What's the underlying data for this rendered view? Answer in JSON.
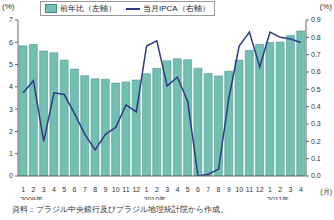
{
  "chart_data": {
    "type": "bar",
    "categories": [
      "1",
      "2",
      "3",
      "4",
      "5",
      "6",
      "7",
      "8",
      "9",
      "10",
      "11",
      "12",
      "1",
      "2",
      "3",
      "4",
      "5",
      "6",
      "7",
      "8",
      "9",
      "10",
      "11",
      "12",
      "1",
      "2",
      "3",
      "4"
    ],
    "x_group_labels": [
      "2009年",
      "2010年",
      "2011年"
    ],
    "x_label": "(月)",
    "y_label": "(%)",
    "y2_label": "(%)",
    "source": "資料：ブラジル中央銀行及びブラジル地理統計院から作成。",
    "ylim": [
      0,
      7
    ],
    "yticks": [
      0,
      1,
      2,
      3,
      4,
      5,
      6,
      7
    ],
    "y2lim": [
      0,
      0.9
    ],
    "y2ticks": [
      {
        "value": 0,
        "label": "0.0"
      },
      0.1,
      0.2,
      0.3,
      0.4,
      0.5,
      0.6,
      0.7,
      0.8,
      0.9
    ],
    "grid": false,
    "legend": "top",
    "series": [
      {
        "name": "前年比（左軸）",
        "type": "bar",
        "color": "#72c0b2",
        "values": [
          5.84,
          5.9,
          5.61,
          5.53,
          5.2,
          4.8,
          4.5,
          4.36,
          4.34,
          4.17,
          4.22,
          4.31,
          4.59,
          4.83,
          5.17,
          5.26,
          5.22,
          4.84,
          4.6,
          4.49,
          4.7,
          5.2,
          5.63,
          5.91,
          5.99,
          6.01,
          6.3,
          6.51
        ]
      },
      {
        "name": "当月IPCA（右軸）",
        "type": "line",
        "axis": "y2",
        "color": "#2e3a87",
        "values": [
          0.48,
          0.55,
          0.2,
          0.48,
          0.47,
          0.36,
          0.24,
          0.15,
          0.24,
          0.28,
          0.41,
          0.37,
          0.75,
          0.78,
          0.52,
          0.57,
          0.43,
          0.0,
          0.01,
          0.04,
          0.45,
          0.75,
          0.83,
          0.63,
          0.83,
          0.8,
          0.79,
          0.77
        ]
      }
    ]
  }
}
